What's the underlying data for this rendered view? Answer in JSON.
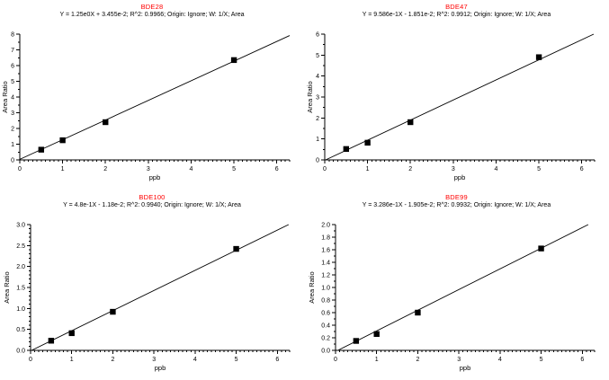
{
  "page": {
    "background": "#ffffff"
  },
  "chart_data": [
    {
      "type": "scatter",
      "title": "BDE28",
      "title_color": "#ff0000",
      "subtitle": "Y = 1.25e0X + 3.455e-2; R^2: 0.9966; Origin: Ignore; W: 1/X; Area",
      "xlabel": "ppb",
      "ylabel": "Area Ratio",
      "xlim": [
        0,
        6.3
      ],
      "ylim": [
        0,
        8
      ],
      "x_major_step": 1,
      "x_minor_step": 0.1,
      "y_major_step": 1,
      "y_minor_step": 0.5,
      "y_tick_decimals": 0,
      "grid": false,
      "legend": "none",
      "line_color": "#000000",
      "marker": "square",
      "marker_color": "#000000",
      "fit": {
        "slope": 1.25,
        "intercept": 0.03455
      },
      "points": [
        [
          0.5,
          0.65
        ],
        [
          1,
          1.25
        ],
        [
          2,
          2.4
        ],
        [
          5,
          6.35
        ]
      ]
    },
    {
      "type": "scatter",
      "title": "BDE47",
      "title_color": "#ff0000",
      "subtitle": "Y = 9.586e-1X - 1.851e-2; R^2: 0.9912; Origin: Ignore; W: 1/X; Area",
      "xlabel": "ppb",
      "ylabel": "Area Ratio",
      "xlim": [
        0,
        6.3
      ],
      "ylim": [
        0,
        6
      ],
      "x_major_step": 1,
      "x_minor_step": 0.1,
      "y_major_step": 1,
      "y_minor_step": 0.5,
      "y_tick_decimals": 0,
      "grid": false,
      "legend": "none",
      "line_color": "#000000",
      "marker": "square",
      "marker_color": "#000000",
      "fit": {
        "slope": 0.9586,
        "intercept": -0.01851
      },
      "points": [
        [
          0.5,
          0.52
        ],
        [
          1,
          0.82
        ],
        [
          2,
          1.8
        ],
        [
          5,
          4.9
        ]
      ]
    },
    {
      "type": "scatter",
      "title": "BDE100",
      "title_color": "#ff0000",
      "subtitle": "Y = 4.8e-1X - 1.18e-2; R^2: 0.9940; Origin: Ignore; W: 1/X; Area",
      "xlabel": "ppb",
      "ylabel": "Area Ratio",
      "xlim": [
        0,
        6.3
      ],
      "ylim": [
        0,
        3
      ],
      "x_major_step": 1,
      "x_minor_step": 0.1,
      "y_major_step": 0.5,
      "y_minor_step": 0.1,
      "y_tick_decimals": 1,
      "grid": false,
      "legend": "none",
      "line_color": "#000000",
      "marker": "square",
      "marker_color": "#000000",
      "fit": {
        "slope": 0.48,
        "intercept": -0.0118
      },
      "points": [
        [
          0.5,
          0.23
        ],
        [
          1,
          0.41
        ],
        [
          2,
          0.92
        ],
        [
          5,
          2.42
        ]
      ]
    },
    {
      "type": "scatter",
      "title": "BDE99",
      "title_color": "#ff0000",
      "subtitle": "Y = 3.286e-1X - 1.905e-2; R^2: 0.9932; Origin: Ignore; W: 1/X; Area",
      "xlabel": "ppb",
      "ylabel": "Area Ratio",
      "xlim": [
        0,
        6.3
      ],
      "ylim": [
        0,
        2
      ],
      "x_major_step": 1,
      "x_minor_step": 0.1,
      "y_major_step": 0.2,
      "y_minor_step": 0.1,
      "y_tick_decimals": 1,
      "grid": false,
      "legend": "none",
      "line_color": "#000000",
      "marker": "square",
      "marker_color": "#000000",
      "fit": {
        "slope": 0.3286,
        "intercept": -0.01905
      },
      "points": [
        [
          0.5,
          0.15
        ],
        [
          1,
          0.26
        ],
        [
          2,
          0.6
        ],
        [
          5,
          1.62
        ]
      ]
    }
  ]
}
